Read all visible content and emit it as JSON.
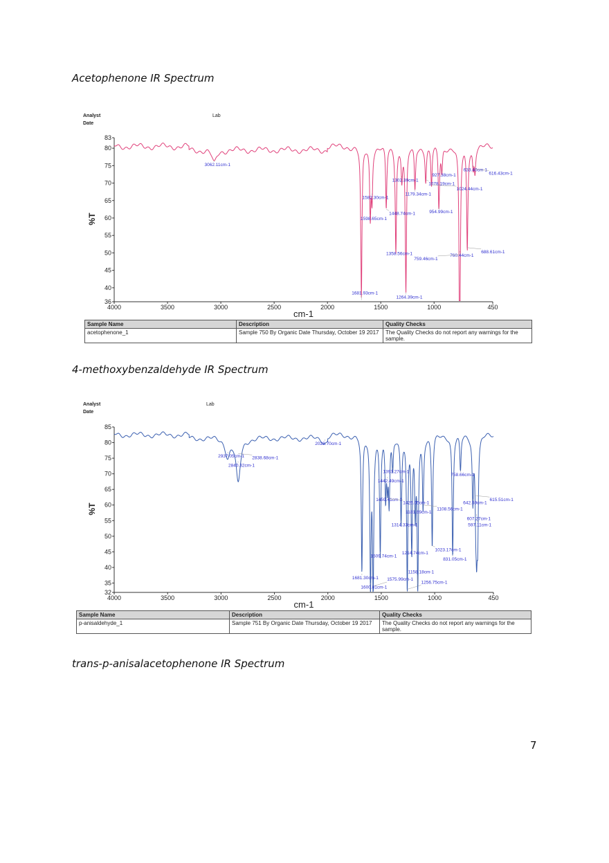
{
  "page_number": "7",
  "chart_data": [
    {
      "type": "line",
      "caption": "Acetophenone IR Spectrum",
      "header": {
        "analyst": "Analyst",
        "date": "Date",
        "lab": "Lab"
      },
      "xlabel": "cm-1",
      "ylabel": "%T",
      "xlim": [
        4000,
        450
      ],
      "ylim": [
        36,
        83
      ],
      "xticks": [
        4000,
        3500,
        3000,
        2500,
        2000,
        1500,
        1000,
        450
      ],
      "yticks": [
        36,
        40,
        45,
        50,
        55,
        60,
        65,
        70,
        75,
        80,
        83
      ],
      "line_color": "#e0407a",
      "baseline": 80.5,
      "peaks": [
        {
          "x": 3062.11,
          "y": 76.5,
          "label": "3062.11cm-1"
        },
        {
          "x": 1681.93,
          "y": 36.5,
          "label": "1681.93cm-1"
        },
        {
          "x": 1598.65,
          "y": 61,
          "label": "1598.65cm-1"
        },
        {
          "x": 1582.3,
          "y": 67,
          "label": "1582.30cm-1"
        },
        {
          "x": 1448.74,
          "y": 62.5,
          "label": "1448.74cm-1"
        },
        {
          "x": 1358.56,
          "y": 51,
          "label": "1358.56cm-1"
        },
        {
          "x": 1302.39,
          "y": 72,
          "label": "1302.39cm-1"
        },
        {
          "x": 1264.39,
          "y": 38.5,
          "label": "1264.39cm-1"
        },
        {
          "x": 1179.34,
          "y": 68,
          "label": "1179.34cm-1"
        },
        {
          "x": 1078.19,
          "y": 71,
          "label": "1078.19cm-1"
        },
        {
          "x": 1024.44,
          "y": 69.5,
          "label": "1024.44cm-1"
        },
        {
          "x": 954.99,
          "y": 63,
          "label": "954.99cm-1"
        },
        {
          "x": 927.38,
          "y": 73.5,
          "label": "927.38cm-1"
        },
        {
          "x": 760.44,
          "y": 50.5,
          "label": "760.44cm-1"
        },
        {
          "x": 759.46,
          "y": 49.5,
          "label": "759.46cm-1"
        },
        {
          "x": 688.61,
          "y": 51.5,
          "label": "688.61cm-1"
        },
        {
          "x": 633.4,
          "y": 75,
          "label": "633.40cm-1"
        },
        {
          "x": 616.43,
          "y": 74,
          "label": "616.43cm-1"
        }
      ],
      "table": {
        "headers": [
          "Sample Name",
          "Description",
          "Quality Checks"
        ],
        "row": [
          "acetophenone_1",
          "Sample 750 By Organic Date Thursday, October 19 2017",
          "The Quality Checks do not report any warnings for the sample."
        ]
      }
    },
    {
      "type": "line",
      "caption": "4-methoxybenzaldehyde IR Spectrum",
      "header": {
        "analyst": "Analyst",
        "date": "Date",
        "lab": "Lab"
      },
      "xlabel": "cm-1",
      "ylabel": "%T",
      "xlim": [
        4000,
        450
      ],
      "ylim": [
        32,
        85
      ],
      "xticks": [
        4000,
        3500,
        3000,
        2500,
        2000,
        1500,
        1000,
        450
      ],
      "yticks": [
        32,
        35,
        40,
        45,
        50,
        55,
        60,
        65,
        70,
        75,
        80,
        85
      ],
      "line_color": "#3a5fb0",
      "baseline": 82.5,
      "peaks": [
        {
          "x": 2937.05,
          "y": 77,
          "label": "2937.05cm-1"
        },
        {
          "x": 2838.68,
          "y": 76.5,
          "label": "2838.68cm-1"
        },
        {
          "x": 2840.32,
          "y": 74,
          "label": "2840.32cm-1"
        },
        {
          "x": 2028.7,
          "y": 81,
          "label": "2028.70cm-1"
        },
        {
          "x": 1681.3,
          "y": 38,
          "label": "1681.30cm-1"
        },
        {
          "x": 1600.81,
          "y": 35,
          "label": "1600.81cm-1"
        },
        {
          "x": 1575.99,
          "y": 34,
          "label": "1575.99cm-1"
        },
        {
          "x": 1509.74,
          "y": 45,
          "label": "1509.74cm-1"
        },
        {
          "x": 1459.41,
          "y": 63,
          "label": "1459.41cm-1"
        },
        {
          "x": 1442.49,
          "y": 69,
          "label": "1442.49cm-1"
        },
        {
          "x": 1426.05,
          "y": 62,
          "label": "1426.05cm-1"
        },
        {
          "x": 1393.27,
          "y": 72,
          "label": "1393.27cm-1"
        },
        {
          "x": 1314.33,
          "y": 55,
          "label": "1314.33cm-1"
        },
        {
          "x": 1256.75,
          "y": 33,
          "label": "1256.75cm-1"
        },
        {
          "x": 1214.74,
          "y": 46,
          "label": "1214.74cm-1"
        },
        {
          "x": 1181.69,
          "y": 59,
          "label": "1181.69cm-1"
        },
        {
          "x": 1158.18,
          "y": 34.5,
          "label": "1158.18cm-1"
        },
        {
          "x": 1108.56,
          "y": 60,
          "label": "1108.56cm-1"
        },
        {
          "x": 1023.17,
          "y": 47,
          "label": "1023.17cm-1"
        },
        {
          "x": 831.05,
          "y": 44,
          "label": "831.05cm-1"
        },
        {
          "x": 758.66,
          "y": 71,
          "label": "758.66cm-1"
        },
        {
          "x": 642.59,
          "y": 62,
          "label": "642.59cm-1"
        },
        {
          "x": 615.51,
          "y": 63,
          "label": "615.51cm-1"
        },
        {
          "x": 607.27,
          "y": 57,
          "label": "607.27cm-1"
        },
        {
          "x": 597.11,
          "y": 55,
          "label": "597.11cm-1"
        }
      ],
      "table": {
        "headers": [
          "Sample Name",
          "Description",
          "Quality Checks"
        ],
        "row": [
          "p-anisaldehyde_1",
          "Sample 751 By Organic Date Thursday, October 19 2017",
          "The Quality Checks do not report any warnings for the sample."
        ]
      }
    }
  ],
  "caption3": "trans-p-anisalacetophenone IR Spectrum"
}
